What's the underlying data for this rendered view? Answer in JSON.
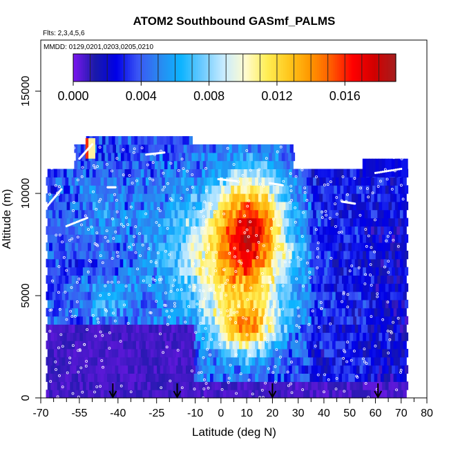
{
  "chart_data": {
    "type": "heatmap",
    "title": "ATOM2 Southbound GASmf_PALMS",
    "subtitle_flights": "Flts: 2,3,4,5,6",
    "subtitle_dates": "MMDD: 0129,0201,0203,0205,0210",
    "xlabel": "Latitude (deg N)",
    "ylabel": "Altitude (m)",
    "xlim": [
      -70,
      80
    ],
    "ylim": [
      0,
      17500
    ],
    "x_ticks": [
      "-70",
      "-55",
      "-40",
      "-25",
      "-10",
      "0",
      "10",
      "20",
      "30",
      "40",
      "50",
      "60",
      "70",
      "80"
    ],
    "x_tick_values": [
      -70,
      -55,
      -40,
      -25,
      -10,
      0,
      10,
      20,
      30,
      40,
      50,
      60,
      70,
      80
    ],
    "x_minor_ticks": [
      -65,
      -60,
      -50,
      -45,
      -35,
      -30,
      -20,
      -15,
      -5,
      5,
      15,
      25,
      35,
      45,
      55,
      65,
      75
    ],
    "y_ticks": [
      "0",
      "5000",
      "10000",
      "15000"
    ],
    "y_tick_values": [
      0,
      5000,
      10000,
      15000
    ],
    "colorbar": {
      "min": 0.0,
      "max": 0.019,
      "ticks": [
        "0.000",
        "0.004",
        "0.008",
        "0.012",
        "0.016"
      ],
      "tick_values": [
        0.0,
        0.004,
        0.008,
        0.012,
        0.016
      ],
      "colors": [
        "#7c17f0",
        "#1a1aa8",
        "#0000e8",
        "#3a55f5",
        "#2a88f0",
        "#0cb4ff",
        "#6ccaff",
        "#c8ecff",
        "#fffbd0",
        "#ffee55",
        "#ffc81e",
        "#ff9800",
        "#ff5a00",
        "#ff0000",
        "#d10000",
        "#a51e1e"
      ]
    },
    "flight_markers_lat": [
      -42,
      -17,
      20,
      61
    ],
    "note": "Curtain of aerosol mass fraction vs latitude and altitude; background near 0 below 4000 m in the south, enhanced values (0.010–0.015) near 10–20 N at 7000–10000 m."
  }
}
